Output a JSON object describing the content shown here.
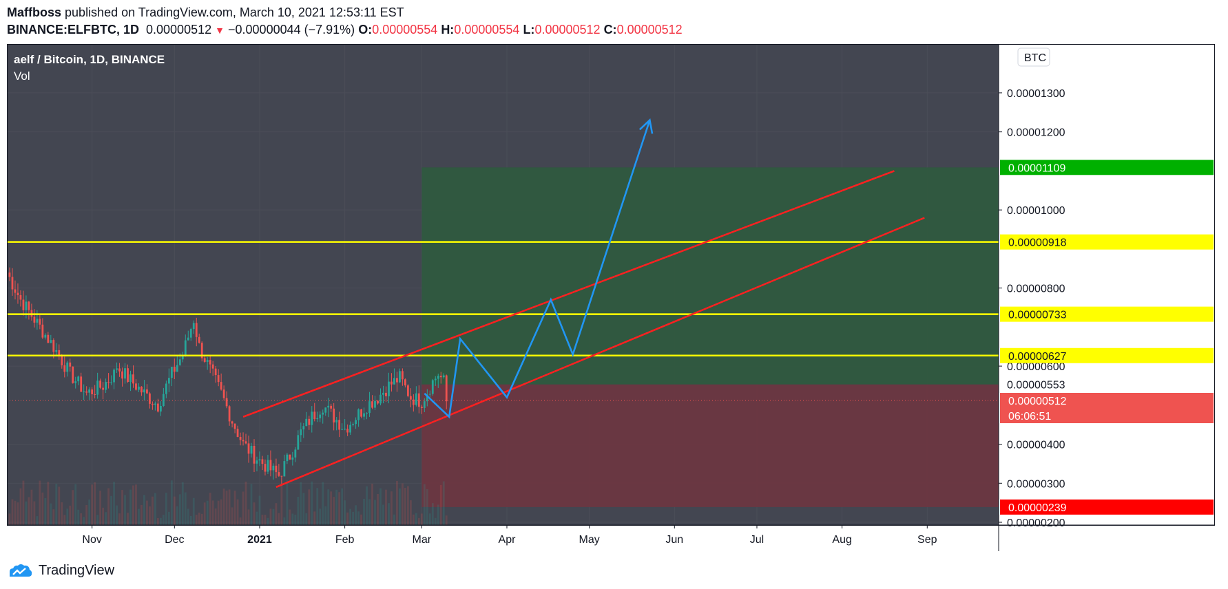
{
  "header": {
    "author": "Maffboss",
    "published": "published on TradingView.com, March 10, 2021 12:53:11 EST",
    "symbol": "BINANCE:ELFBTC, 1D",
    "last": "0.00000512",
    "change": "−0.00000044 (−7.91%)",
    "o_label": "O:",
    "o_value": "0.00000554",
    "h_label": "H:",
    "h_value": "0.00000554",
    "l_label": "L:",
    "l_value": "0.00000512",
    "c_label": "C:",
    "c_value": "0.00000512"
  },
  "legend": {
    "title": "aelf / Bitcoin, 1D, BINANCE",
    "vol": "Vol"
  },
  "currency_badge": "BTC",
  "footer": {
    "brand": "TradingView"
  },
  "colors": {
    "background": "#434651",
    "grid": "#4b4e58",
    "bull": "#26a69a",
    "bear": "#ef5350",
    "level": "#ffff00",
    "channel": "#ff2020",
    "projection": "#2196f3",
    "target_zone": "#2f5a3e",
    "stop_zone": "#6e3540",
    "axis_text": "#ffffff"
  },
  "chart_data": {
    "type": "candlestick",
    "ylim": [
      1.93e-06,
      1.425e-05
    ],
    "y_ticks": [
      "0.00001300",
      "0.00001200",
      "0.00001000",
      "0.00000800",
      "0.00000600",
      "0.00000400",
      "0.00000300",
      "0.00000200"
    ],
    "y_tick_values": [
      1.3e-05,
      1.2e-05,
      1e-05,
      8e-06,
      6e-06,
      4e-06,
      3e-06,
      2e-06
    ],
    "x_ticks": [
      {
        "label": "Nov",
        "date": "2020-11-01"
      },
      {
        "label": "Dec",
        "date": "2020-12-01"
      },
      {
        "label": "2021",
        "date": "2021-01-01"
      },
      {
        "label": "Feb",
        "date": "2021-02-01"
      },
      {
        "label": "Mar",
        "date": "2021-03-01"
      },
      {
        "label": "Apr",
        "date": "2021-04-01"
      },
      {
        "label": "May",
        "date": "2021-05-01"
      },
      {
        "label": "Jun",
        "date": "2021-06-01"
      },
      {
        "label": "Jul",
        "date": "2021-07-01"
      },
      {
        "label": "Aug",
        "date": "2021-08-01"
      },
      {
        "label": "Sep",
        "date": "2021-09-01"
      }
    ],
    "xlim": [
      "2020-10-01",
      "2021-09-27"
    ],
    "close_series": [
      [
        "2020-10-01",
        8.4e-06
      ],
      [
        "2020-10-06",
        7.7e-06
      ],
      [
        "2020-10-12",
        7.1e-06
      ],
      [
        "2020-10-18",
        6.5e-06
      ],
      [
        "2020-10-24",
        5.8e-06
      ],
      [
        "2020-10-30",
        5.3e-06
      ],
      [
        "2020-11-05",
        5.5e-06
      ],
      [
        "2020-11-09",
        5.8e-06
      ],
      [
        "2020-11-10",
        6e-06
      ],
      [
        "2020-11-14",
        5.7e-06
      ],
      [
        "2020-11-20",
        5.3e-06
      ],
      [
        "2020-11-25",
        5e-06
      ],
      [
        "2020-11-30",
        5.8e-06
      ],
      [
        "2020-12-04",
        6.3e-06
      ],
      [
        "2020-12-08",
        7.2e-06
      ],
      [
        "2020-12-10",
        6.5e-06
      ],
      [
        "2020-12-14",
        5.9e-06
      ],
      [
        "2020-12-18",
        5.3e-06
      ],
      [
        "2020-12-22",
        4.6e-06
      ],
      [
        "2020-12-26",
        4e-06
      ],
      [
        "2020-12-30",
        3.7e-06
      ],
      [
        "2021-01-04",
        3.4e-06
      ],
      [
        "2021-01-08",
        3.2e-06
      ],
      [
        "2021-01-12",
        3.7e-06
      ],
      [
        "2021-01-16",
        4.3e-06
      ],
      [
        "2021-01-20",
        4.7e-06
      ],
      [
        "2021-01-24",
        5e-06
      ],
      [
        "2021-01-28",
        4.7e-06
      ],
      [
        "2021-02-01",
        4.4e-06
      ],
      [
        "2021-02-05",
        4.7e-06
      ],
      [
        "2021-02-09",
        5e-06
      ],
      [
        "2021-02-13",
        5.2e-06
      ],
      [
        "2021-02-17",
        5.5e-06
      ],
      [
        "2021-02-21",
        5.7e-06
      ],
      [
        "2021-02-25",
        5.2e-06
      ],
      [
        "2021-03-01",
        5.1e-06
      ],
      [
        "2021-03-05",
        5.6e-06
      ],
      [
        "2021-03-07",
        5.8e-06
      ],
      [
        "2021-03-09",
        5.6e-06
      ],
      [
        "2021-03-10",
        5.1e-06
      ]
    ],
    "levels": [
      {
        "value": 9.18e-06,
        "label": "0.00000918"
      },
      {
        "value": 7.33e-06,
        "label": "0.00000733"
      },
      {
        "value": 6.27e-06,
        "label": "0.00000627"
      }
    ],
    "position": {
      "start": "2021-03-01",
      "end": "2021-09-27",
      "target": 1.109e-05,
      "target_label": "0.00001109",
      "entry": 5.53e-06,
      "entry_label": "0.00000553",
      "stop": 2.39e-06,
      "stop_label": "0.00000239"
    },
    "current": {
      "value": 5.12e-06,
      "label": "0.00000512",
      "countdown": "06:06:51"
    },
    "channel": {
      "lower": [
        [
          "2021-01-07",
          2.9e-06
        ],
        [
          "2021-08-31",
          9.8e-06
        ]
      ],
      "upper": [
        [
          "2020-12-26",
          4.7e-06
        ],
        [
          "2021-08-20",
          1.1e-05
        ]
      ]
    },
    "projection": [
      [
        "2021-03-02",
        5.3e-06
      ],
      [
        "2021-03-11",
        4.7e-06
      ],
      [
        "2021-03-15",
        6.7e-06
      ],
      [
        "2021-04-01",
        5.2e-06
      ],
      [
        "2021-04-17",
        7.7e-06
      ],
      [
        "2021-04-25",
        6.3e-06
      ],
      [
        "2021-05-23",
        1.23e-05
      ]
    ]
  }
}
